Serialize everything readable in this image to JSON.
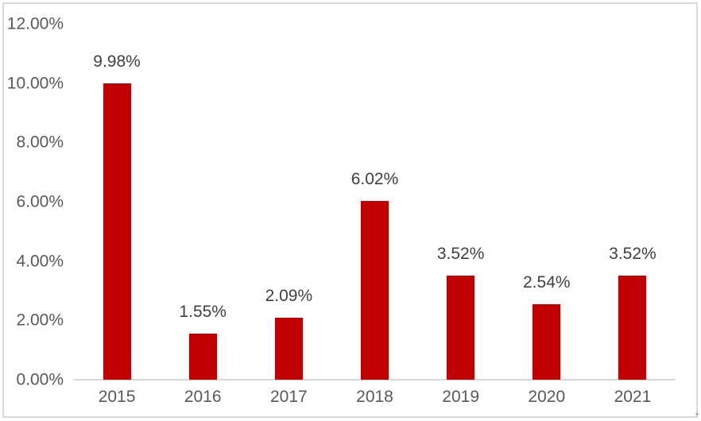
{
  "chart_data": {
    "type": "bar",
    "title": "",
    "xlabel": "",
    "ylabel": "",
    "categories": [
      "2015",
      "2016",
      "2017",
      "2018",
      "2019",
      "2020",
      "2021"
    ],
    "values": [
      9.98,
      1.55,
      2.09,
      6.02,
      3.52,
      2.54,
      3.52
    ],
    "data_labels": [
      "9.98%",
      "1.55%",
      "2.09%",
      "6.02%",
      "3.52%",
      "2.54%",
      "3.52%"
    ],
    "y_ticks": [
      {
        "value": 0,
        "label": "0.00%"
      },
      {
        "value": 2,
        "label": "2.00%"
      },
      {
        "value": 4,
        "label": "4.00%"
      },
      {
        "value": 6,
        "label": "6.00%"
      },
      {
        "value": 8,
        "label": "8.00%"
      },
      {
        "value": 10,
        "label": "10.00%"
      },
      {
        "value": 12,
        "label": "12.00%"
      }
    ],
    "ylim": [
      0,
      12
    ],
    "grid": false,
    "legend": null,
    "colors": {
      "bar": "#c00000",
      "axis_line": "#d9d9d9",
      "frame_border": "#d9d9d9",
      "tick_label": "#595959",
      "data_label": "#404040",
      "background": "#ffffff"
    }
  },
  "watermark": {
    "corner_mark": "+"
  }
}
